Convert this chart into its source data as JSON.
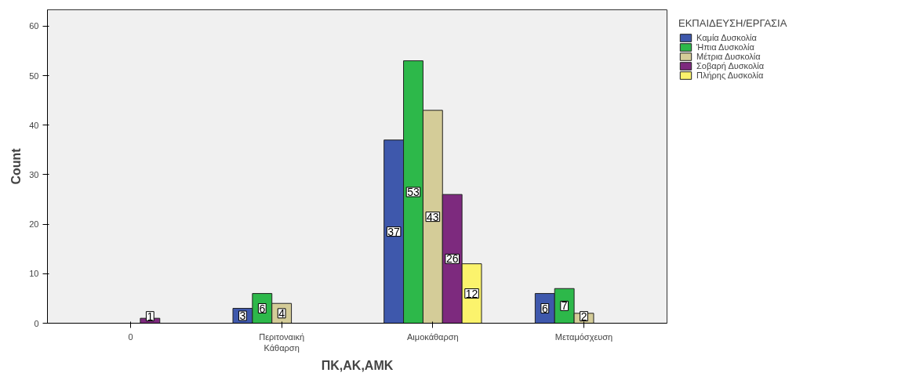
{
  "chart_data": {
    "type": "bar",
    "xlabel": "ΠΚ,ΑΚ,ΑΜΚ",
    "ylabel": "Count",
    "legend_title": "ΕΚΠΑΙΔΕΥΣΗ/ΕΡΓΑΣΙΑ",
    "categories": [
      "0",
      "Περιτοναική\nΚάθαρση",
      "Αιμοκάθαρση",
      "Μεταμόσχευση"
    ],
    "series": [
      {
        "name": "Καμία Δυσκολία",
        "color": "#3e58ac",
        "values": [
          0,
          3,
          37,
          6
        ],
        "value_labels": [
          null,
          "3",
          "37",
          "6"
        ]
      },
      {
        "name": "Ήπια Δυσκολία",
        "color": "#2db84a",
        "values": [
          0,
          6,
          53,
          7
        ],
        "value_labels": [
          null,
          "6",
          "53",
          "7"
        ]
      },
      {
        "name": "Μέτρια Δυσκολία",
        "color": "#d4cc98",
        "values": [
          0,
          4,
          43,
          2
        ],
        "value_labels": [
          null,
          "4",
          "43",
          "2"
        ]
      },
      {
        "name": "Σοβαρή Δυσκολία",
        "color": "#7d2a7e",
        "values": [
          1,
          0,
          26,
          0
        ],
        "value_labels": [
          "1",
          null,
          "26",
          null
        ]
      },
      {
        "name": "Πλήρης Δυσκολία",
        "color": "#fbf36c",
        "values": [
          0,
          0,
          12,
          0
        ],
        "value_labels": [
          null,
          null,
          "12",
          null
        ]
      }
    ],
    "ylim": [
      0,
      63.3
    ],
    "yticks": [
      0,
      10,
      20,
      30,
      40,
      50,
      60
    ],
    "grid": false,
    "legend": "right"
  }
}
